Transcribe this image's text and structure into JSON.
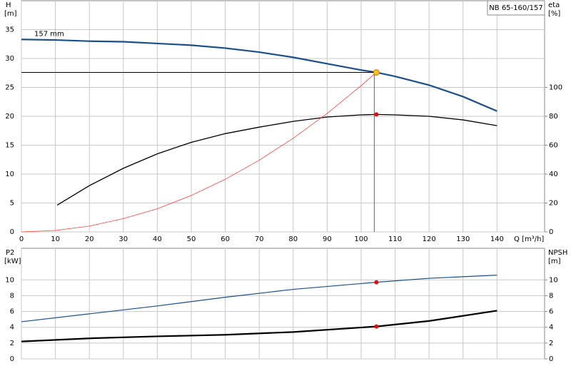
{
  "chart_data": [
    {
      "type": "line",
      "title": "NB 65-160/157",
      "y_label": "H",
      "y_unit": "[m]",
      "y2_label": "eta",
      "y2_unit": "[%]",
      "x_label": "Q [m³/h]",
      "xlim": [
        0,
        154
      ],
      "xticks": [
        0,
        10,
        20,
        30,
        40,
        50,
        60,
        70,
        80,
        90,
        100,
        110,
        120,
        130,
        140
      ],
      "ylim": [
        0,
        40
      ],
      "yticks": [
        0,
        5,
        10,
        15,
        20,
        25,
        30,
        35
      ],
      "y2lim": [
        0,
        160
      ],
      "y2ticks": [
        0,
        20,
        40,
        60,
        80,
        100
      ],
      "grid": true,
      "series": [
        {
          "name": "157 mm",
          "color": "#1a4f8a",
          "width": 2.2,
          "style": "line",
          "x": [
            0,
            10,
            20,
            30,
            40,
            50,
            60,
            70,
            80,
            90,
            100,
            104.5,
            110,
            120,
            130,
            140
          ],
          "values": [
            33.3,
            33.2,
            33.0,
            32.9,
            32.6,
            32.3,
            31.8,
            31.1,
            30.2,
            29.1,
            28.0,
            27.6,
            26.9,
            25.4,
            23.4,
            20.9
          ]
        },
        {
          "color": "#000000",
          "width": 1.3,
          "style": "line",
          "axis": "y2",
          "x": [
            10.5,
            20,
            30,
            40,
            50,
            60,
            70,
            80,
            90,
            100,
            104.5,
            110,
            120,
            130,
            140
          ],
          "values": [
            18.5,
            32,
            44,
            54,
            62,
            68,
            72.5,
            76.5,
            79.5,
            81,
            81.3,
            81,
            80,
            77.5,
            73.5
          ]
        },
        {
          "color": "#ff4040",
          "width": 0.8,
          "style": "line",
          "x": [
            0,
            10,
            20,
            30,
            40,
            50,
            60,
            70,
            80,
            90,
            100,
            104.5
          ],
          "values": [
            0,
            0.25,
            1.0,
            2.3,
            4.0,
            6.3,
            9.1,
            12.4,
            16.2,
            20.5,
            25.3,
            27.6
          ]
        },
        {
          "color": "#ffc020",
          "style": "marker",
          "guides": true,
          "x": [
            104.5
          ],
          "values": [
            27.6
          ]
        },
        {
          "color": "#e01010",
          "style": "marker",
          "axis": "y2",
          "x": [
            104.5
          ],
          "values": [
            81.3
          ]
        }
      ]
    },
    {
      "type": "line",
      "y_label": "P2",
      "y_unit": "[kW]",
      "y2_label": "NPSH",
      "y2_unit": "[m]",
      "xlim": [
        0,
        154
      ],
      "xticks": [
        0,
        10,
        20,
        30,
        40,
        50,
        60,
        70,
        80,
        90,
        100,
        110,
        120,
        130,
        140
      ],
      "ylim": [
        0,
        14
      ],
      "yticks": [
        0,
        2,
        4,
        6,
        8,
        10
      ],
      "y2lim": [
        0,
        14
      ],
      "y2ticks": [
        0,
        2,
        4,
        6,
        8,
        10
      ],
      "grid": true,
      "series": [
        {
          "color": "#1a4f8a",
          "width": 1.2,
          "style": "line",
          "x": [
            0,
            20,
            40,
            60,
            80,
            104.5,
            120,
            140
          ],
          "values": [
            4.7,
            5.7,
            6.7,
            7.8,
            8.8,
            9.7,
            10.2,
            10.6
          ]
        },
        {
          "color": "#000000",
          "width": 2.2,
          "style": "line",
          "axis": "y2",
          "x": [
            0,
            20,
            40,
            60,
            80,
            104.5,
            120,
            140
          ],
          "values": [
            2.2,
            2.6,
            2.85,
            3.05,
            3.4,
            4.1,
            4.8,
            6.1
          ]
        },
        {
          "color": "#e01010",
          "style": "marker",
          "x": [
            104.5
          ],
          "values": [
            9.7
          ]
        },
        {
          "color": "#e01010",
          "style": "marker",
          "axis": "y2",
          "x": [
            104.5
          ],
          "values": [
            4.1
          ]
        }
      ]
    }
  ]
}
